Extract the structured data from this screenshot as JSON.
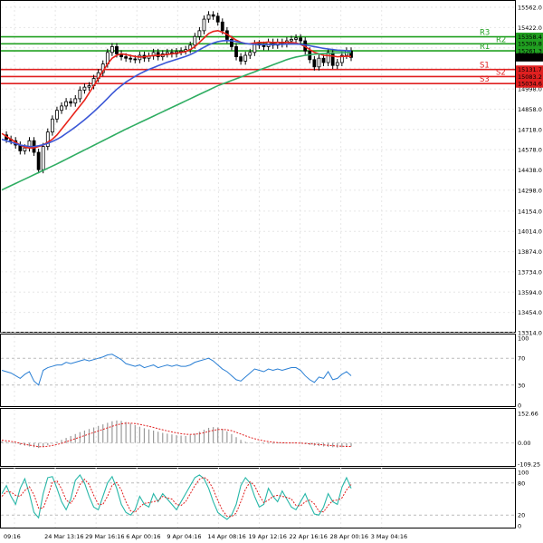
{
  "colors": {
    "background": "#ffffff",
    "frame": "#000000",
    "grid": "#e6e6e6",
    "candle": "#000000",
    "ma_fast": "#e8231a",
    "ma_mid": "#3b57d6",
    "ma_slow": "#2fad62",
    "resistance": "#21a021",
    "support": "#e02020",
    "osc1_line": "#2a7fd4",
    "macd_hist": "#9a9a9a",
    "macd_signal": "#e02020",
    "stoch_k": "#27b7a8",
    "stoch_d": "#e02020",
    "price_tag": "#000000",
    "level_tag_text": "#ffffff"
  },
  "chart_data": [
    {
      "type": "line",
      "title": "",
      "price_axis_ticks": [
        "15562.0",
        "15422.0",
        "15282.0",
        "15142.0",
        "14998.0",
        "14858.0",
        "14718.0",
        "14578.0",
        "14438.0",
        "14298.0",
        "14154.0",
        "14014.0",
        "13874.0",
        "13734.0",
        "13594.0",
        "13454.0",
        "13314.0"
      ],
      "ylim": [
        13314,
        15562
      ],
      "time_axis_labels": [
        "09:16",
        "24 Mar 13:16",
        "29 Mar 16:16",
        "6 Apr 00:16",
        "9 Apr 04:16",
        "14 Apr 08:16",
        "19 Apr 12:16",
        "22 Apr 16:16",
        "28 Apr 00:16",
        "3 May 04:16"
      ],
      "grid": true,
      "current_price": "15215.5",
      "pivot_levels": [
        {
          "name": "R3",
          "value": 15358.4,
          "value_label": "15358.4",
          "kind": "resistance"
        },
        {
          "name": "R2",
          "value": 15309.8,
          "value_label": "15309.8",
          "kind": "resistance"
        },
        {
          "name": "R1",
          "value": 15261.3,
          "value_label": "15261.3",
          "kind": "resistance"
        },
        {
          "name": "S1",
          "value": 15131.7,
          "value_label": "15131.7",
          "kind": "support"
        },
        {
          "name": "S2",
          "value": 15083.2,
          "value_label": "15083.2",
          "kind": "support"
        },
        {
          "name": "S3",
          "value": 15034.6,
          "value_label": "15034.6",
          "kind": "support"
        }
      ],
      "series": [
        {
          "key": "price",
          "values": [
            14680,
            14650,
            14640,
            14610,
            14570,
            14590,
            14640,
            14560,
            14440,
            14600,
            14700,
            14790,
            14850,
            14880,
            14910,
            14900,
            14930,
            14990,
            15010,
            15020,
            15070,
            15110,
            15170,
            15250,
            15290,
            15240,
            15220,
            15210,
            15205,
            15200,
            15230,
            15210,
            15225,
            15250,
            15220,
            15240,
            15250,
            15240,
            15255,
            15260,
            15270,
            15300,
            15360,
            15400,
            15480,
            15510,
            15500,
            15460,
            15400,
            15340,
            15290,
            15220,
            15190,
            15230,
            15250,
            15310,
            15300,
            15290,
            15320,
            15300,
            15320,
            15310,
            15330,
            15340,
            15350,
            15330,
            15260,
            15200,
            15150,
            15210,
            15180,
            15250,
            15160,
            15180,
            15230,
            15260,
            15215.5
          ]
        },
        {
          "key": "ma_fast",
          "values": [
            14690,
            14670,
            14650,
            14630,
            14610,
            14595,
            14590,
            14590,
            14600,
            14610,
            14630,
            14650,
            14680,
            14720,
            14760,
            14800,
            14840,
            14880,
            14920,
            14970,
            15020,
            15070,
            15120,
            15170,
            15210,
            15230,
            15240,
            15235,
            15228,
            15222,
            15218,
            15220,
            15225,
            15228,
            15230,
            15232,
            15236,
            15240,
            15245,
            15250,
            15255,
            15270,
            15290,
            15320,
            15350,
            15380,
            15395,
            15400,
            15390,
            15375,
            15355,
            15335,
            15320,
            15310,
            15310,
            15315,
            15320,
            15318,
            15322,
            15318,
            15320,
            15318,
            15320,
            15318,
            15315,
            15305,
            15290,
            15270,
            15250,
            15240,
            15230,
            15228,
            15225,
            15220,
            15222,
            15224,
            15222
          ]
        },
        {
          "key": "ma_mid",
          "values": [
            14650,
            14640,
            14630,
            14620,
            14610,
            14605,
            14600,
            14600,
            14605,
            14612,
            14622,
            14635,
            14650,
            14668,
            14690,
            14712,
            14735,
            14760,
            14785,
            14812,
            14840,
            14870,
            14900,
            14932,
            14965,
            14995,
            15020,
            15045,
            15065,
            15085,
            15102,
            15118,
            15132,
            15145,
            15158,
            15170,
            15182,
            15192,
            15202,
            15212,
            15222,
            15235,
            15250,
            15268,
            15286,
            15302,
            15315,
            15325,
            15330,
            15332,
            15330,
            15325,
            15318,
            15312,
            15308,
            15306,
            15305,
            15304,
            15304,
            15304,
            15305,
            15306,
            15307,
            15308,
            15308,
            15306,
            15302,
            15296,
            15290,
            15284,
            15278,
            15274,
            15270,
            15266,
            15264,
            15262,
            15260
          ]
        },
        {
          "key": "ma_slow",
          "values": [
            14300,
            14315,
            14330,
            14345,
            14360,
            14375,
            14390,
            14405,
            14420,
            14435,
            14450,
            14465,
            14480,
            14496,
            14512,
            14528,
            14544,
            14560,
            14576,
            14592,
            14608,
            14624,
            14640,
            14656,
            14672,
            14688,
            14704,
            14720,
            14735,
            14750,
            14765,
            14780,
            14795,
            14810,
            14825,
            14840,
            14855,
            14870,
            14885,
            14900,
            14915,
            14930,
            14945,
            14960,
            14975,
            14990,
            15005,
            15020,
            15032,
            15044,
            15056,
            15068,
            15080,
            15092,
            15104,
            15116,
            15128,
            15140,
            15152,
            15164,
            15176,
            15188,
            15200,
            15210,
            15218,
            15224,
            15230,
            15234,
            15238,
            15240,
            15242,
            15244,
            15246,
            15247,
            15248,
            15249,
            15250
          ]
        }
      ]
    },
    {
      "type": "line",
      "title": "",
      "axis_ticks": [
        "100",
        "70",
        "30",
        "0"
      ],
      "ylim": [
        0,
        100
      ],
      "series": [
        {
          "key": "oscillator",
          "values": [
            52,
            50,
            48,
            44,
            40,
            46,
            50,
            36,
            30,
            52,
            56,
            58,
            60,
            60,
            64,
            62,
            64,
            66,
            68,
            66,
            68,
            70,
            72,
            75,
            76,
            72,
            68,
            62,
            60,
            58,
            60,
            56,
            58,
            60,
            56,
            58,
            60,
            58,
            60,
            58,
            58,
            60,
            64,
            66,
            68,
            70,
            66,
            60,
            54,
            50,
            44,
            38,
            36,
            42,
            48,
            54,
            52,
            50,
            54,
            52,
            54,
            52,
            54,
            56,
            56,
            52,
            44,
            38,
            34,
            42,
            40,
            50,
            38,
            40,
            46,
            50,
            44
          ]
        }
      ]
    },
    {
      "type": "bar",
      "title": "",
      "axis_ticks": [
        "152.66",
        "0.00",
        "-109.25"
      ],
      "ylim": [
        -109.25,
        152.66
      ],
      "series": [
        {
          "key": "histogram",
          "values": [
            10,
            6,
            2,
            -4,
            -10,
            -14,
            -18,
            -22,
            -26,
            -20,
            -12,
            -4,
            6,
            16,
            26,
            36,
            46,
            56,
            64,
            72,
            80,
            88,
            96,
            104,
            112,
            116,
            114,
            108,
            100,
            92,
            84,
            76,
            70,
            64,
            58,
            52,
            48,
            44,
            40,
            38,
            36,
            40,
            48,
            58,
            68,
            78,
            82,
            80,
            72,
            60,
            46,
            30,
            16,
            6,
            2,
            0,
            -2,
            -4,
            -3,
            -4,
            -2,
            -3,
            -2,
            -1,
            0,
            -2,
            -6,
            -10,
            -14,
            -16,
            -18,
            -20,
            -22,
            -24,
            -22,
            -20,
            -18
          ]
        },
        {
          "key": "signal",
          "values": [
            14,
            11,
            8,
            4,
            -2,
            -7,
            -11,
            -15,
            -19,
            -19,
            -17,
            -13,
            -8,
            -2,
            6,
            14,
            22,
            30,
            38,
            46,
            54,
            62,
            70,
            78,
            86,
            93,
            99,
            102,
            102,
            100,
            96,
            91,
            86,
            80,
            74,
            68,
            62,
            57,
            52,
            48,
            45,
            44,
            45,
            48,
            53,
            59,
            65,
            69,
            70,
            68,
            63,
            55,
            46,
            37,
            29,
            22,
            16,
            11,
            7,
            4,
            2,
            1,
            0,
            0,
            0,
            -1,
            -2,
            -4,
            -6,
            -8,
            -10,
            -12,
            -14,
            -16,
            -17,
            -18,
            -18
          ]
        }
      ]
    },
    {
      "type": "line",
      "title": "",
      "axis_ticks": [
        "100",
        "80",
        "20",
        "0"
      ],
      "ylim": [
        0,
        100
      ],
      "series": [
        {
          "key": "stoch_k",
          "values": [
            60,
            75,
            55,
            40,
            70,
            88,
            60,
            25,
            15,
            60,
            90,
            92,
            70,
            45,
            30,
            50,
            85,
            95,
            80,
            55,
            35,
            30,
            55,
            80,
            92,
            70,
            40,
            25,
            20,
            30,
            55,
            40,
            35,
            60,
            45,
            60,
            50,
            40,
            30,
            45,
            60,
            75,
            90,
            95,
            88,
            70,
            45,
            25,
            18,
            12,
            20,
            40,
            75,
            90,
            80,
            55,
            35,
            40,
            70,
            55,
            45,
            65,
            50,
            35,
            30,
            45,
            60,
            40,
            22,
            20,
            35,
            60,
            45,
            40,
            72,
            90,
            70
          ]
        },
        {
          "key": "stoch_d",
          "values": [
            55,
            64,
            63,
            57,
            55,
            66,
            73,
            58,
            33,
            33,
            55,
            81,
            84,
            69,
            48,
            42,
            55,
            77,
            87,
            77,
            57,
            40,
            40,
            55,
            76,
            81,
            67,
            45,
            28,
            25,
            35,
            42,
            43,
            45,
            47,
            55,
            52,
            50,
            40,
            38,
            45,
            60,
            75,
            87,
            91,
            84,
            68,
            47,
            29,
            18,
            17,
            24,
            45,
            68,
            82,
            75,
            57,
            43,
            48,
            55,
            57,
            55,
            53,
            50,
            38,
            37,
            45,
            48,
            41,
            27,
            26,
            38,
            47,
            48,
            52,
            67,
            77
          ]
        }
      ]
    }
  ]
}
